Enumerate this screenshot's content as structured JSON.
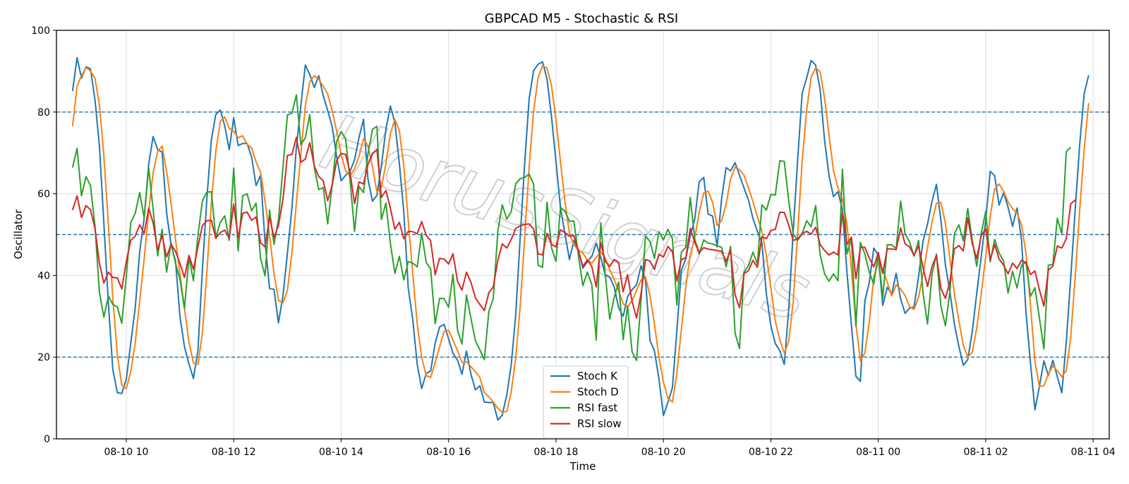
{
  "chart_data": {
    "type": "line",
    "title": "GBPCAD M5 - Stochastic & RSI",
    "xlabel": "Time",
    "ylabel": "Oscillator",
    "ylim": [
      0,
      100
    ],
    "xlim": [
      "08-10 08:42",
      "08-11 04:18"
    ],
    "yticks": [
      0,
      20,
      40,
      60,
      80,
      100
    ],
    "xticks": [
      "08-10 10",
      "08-10 12",
      "08-10 14",
      "08-10 16",
      "08-10 18",
      "08-10 20",
      "08-10 22",
      "08-11 00",
      "08-11 02",
      "08-11 04"
    ],
    "grid": true,
    "legend_position": "bottom-center",
    "watermark": "HorusSignals",
    "reference_lines": [
      {
        "y": 80,
        "color": "#1f77b4",
        "style": "dashed"
      },
      {
        "y": 50,
        "color": "#1f77b4",
        "style": "dashed"
      },
      {
        "y": 20,
        "color": "#1f77b4",
        "style": "dashed"
      }
    ],
    "x_start": "08-10 09:00",
    "x_step_minutes": 5,
    "series": [
      {
        "name": "Stoch K",
        "color": "#1f77b4",
        "values": [
          85.1,
          93.3,
          88.3,
          91.1,
          90.6,
          83,
          71.7,
          52.8,
          33.2,
          16.9,
          11.3,
          11.1,
          14.6,
          23.5,
          32,
          45.9,
          54,
          67.2,
          74,
          70.8,
          70.2,
          55.4,
          47.5,
          43.6,
          29.8,
          22.6,
          18.3,
          14.8,
          21.6,
          41.3,
          58.6,
          73.2,
          79.4,
          80.5,
          76.6,
          70.8,
          78.6,
          71.8,
          72.3,
          72.3,
          69,
          62,
          64.5,
          48.2,
          36.8,
          36.6,
          28.4,
          35,
          45.4,
          56.5,
          71.3,
          81.6,
          91.5,
          89.2,
          86,
          88.9,
          84,
          80.4,
          76.4,
          69.1,
          63.2,
          64.5,
          65.5,
          68.3,
          73.8,
          78.2,
          63.5,
          58.2,
          59.6,
          66.8,
          75.8,
          81.5,
          77.4,
          67.5,
          55.5,
          36.8,
          29.3,
          18.2,
          12.3,
          16,
          16.6,
          23.4,
          27.4,
          28,
          24.5,
          20.9,
          19.3,
          15.8,
          21.5,
          15.8,
          12,
          13,
          9,
          8.9,
          8.9,
          4.6,
          5.8,
          10.8,
          18.1,
          30.2,
          49.3,
          67.3,
          83.3,
          90.1,
          91.7,
          92.3,
          88,
          78.8,
          67.9,
          56.6,
          50.2,
          43.9,
          48.5,
          46.2,
          41.8,
          43.3,
          44.7,
          47.9,
          44.4,
          40.2,
          39.6,
          37.2,
          32.1,
          30,
          34.8,
          36.5,
          37.7,
          42.4,
          38.8,
          24.1,
          21.5,
          14.7,
          5.7,
          8.9,
          12.5,
          26.4,
          41.2,
          44.1,
          49.7,
          53.8,
          62.9,
          64,
          55,
          54.5,
          47,
          58.7,
          66.4,
          65.6,
          67.6,
          64.5,
          61.4,
          58.5,
          53.9,
          50.8,
          48,
          35.5,
          27.7,
          23.3,
          21.6,
          18.2,
          31.8,
          50.8,
          68.5,
          84.6,
          88.3,
          92.6,
          91.5,
          85.6,
          73,
          64.4,
          59.3,
          60.5,
          56.1,
          40.8,
          27.9,
          15.3,
          14.1,
          33.7,
          38.3,
          46.7,
          45,
          32.7,
          37.1,
          35.4,
          40.5,
          34.2,
          30.7,
          32,
          32.3,
          39.8,
          48.4,
          52.6,
          58.1,
          62.3,
          53.4,
          42.6,
          36,
          28.1,
          22.6,
          18,
          19.4,
          26.3,
          35.6,
          44.7,
          53.4,
          65.5,
          64.4,
          57.2,
          60.3,
          56.7,
          52,
          56.5,
          48.7,
          31,
          18.5,
          7.1,
          12.8,
          19.1,
          15.5,
          19.2,
          15.2,
          11.3,
          23.7,
          39.4,
          56.3,
          72,
          84.5,
          89
        ]
      },
      {
        "name": "Stoch D",
        "color": "#ff7f0e",
        "values": [
          76.5,
          86.3,
          88.9,
          90.9,
          90,
          88.3,
          81.7,
          69.2,
          52.6,
          34.3,
          20.5,
          13.1,
          12.3,
          16.4,
          23.4,
          33.8,
          44,
          55.7,
          65.1,
          70.4,
          71.7,
          65.5,
          57.7,
          48.8,
          40.3,
          32,
          23.6,
          18.6,
          18.2,
          25.9,
          40.5,
          57.7,
          70.4,
          77.7,
          78.8,
          76,
          75.3,
          73.7,
          74.2,
          72.1,
          71.2,
          67.8,
          65.2,
          58.2,
          49.8,
          40.5,
          33.9,
          33.3,
          36.3,
          45.6,
          57.7,
          69.8,
          81.5,
          87.4,
          88.9,
          88,
          86.3,
          84.4,
          80.3,
          75.3,
          69.6,
          65.6,
          64.4,
          66.1,
          69.2,
          73.4,
          71.8,
          66.6,
          60.4,
          61.5,
          67.4,
          74.7,
          78.2,
          75.5,
          66.8,
          53.3,
          40.5,
          28.1,
          19.9,
          15.5,
          15,
          18.7,
          22.5,
          26.3,
          26.6,
          24.1,
          21.6,
          18.7,
          18.9,
          17.7,
          16.4,
          15,
          11.3,
          10.3,
          9,
          7.5,
          6.5,
          6.7,
          11.5,
          19.7,
          32.5,
          49,
          66.6,
          80.2,
          88.4,
          91.4,
          90.7,
          86.4,
          78.2,
          67.8,
          58.2,
          50.2,
          47.5,
          46.2,
          45.5,
          43.8,
          43,
          44.4,
          45.7,
          44.2,
          41.4,
          39,
          36.3,
          33.1,
          32.3,
          33.8,
          36.3,
          38.9,
          39.6,
          35.1,
          28.1,
          20.1,
          13.9,
          10,
          9,
          15.9,
          26.7,
          37.2,
          45,
          49.2,
          55.5,
          60.2,
          60.6,
          57.8,
          52.2,
          53.4,
          57.4,
          63.6,
          66.5,
          65.9,
          64.5,
          61.5,
          58,
          54.4,
          50.9,
          44.8,
          37.1,
          28.8,
          24.2,
          21,
          23.9,
          33.6,
          50.4,
          68,
          80.5,
          88.5,
          90.8,
          89.9,
          83.4,
          74.3,
          65.6,
          61.4,
          58.6,
          52.5,
          41.6,
          28,
          19.1,
          21,
          28.7,
          39.6,
          43.3,
          41.5,
          38.3,
          35,
          37.7,
          36.7,
          35.1,
          32.3,
          31.7,
          34.7,
          40.2,
          46.9,
          53,
          57.7,
          57.9,
          52.8,
          44,
          35.6,
          28.9,
          22.9,
          20,
          21.2,
          27.1,
          35.5,
          44.6,
          54.5,
          61.1,
          62.4,
          60.6,
          58,
          56.3,
          55.3,
          52.4,
          45.4,
          32.7,
          18.9,
          12.8,
          13,
          15.8,
          17.9,
          16.6,
          15.2,
          16.7,
          24.8,
          39.8,
          55.9,
          70.9,
          82.2
        ]
      },
      {
        "name": "RSI fast",
        "color": "#2ca02c",
        "values": [
          66.4,
          71.1,
          59.5,
          64.2,
          62,
          52.1,
          35.8,
          29.8,
          35,
          32.9,
          32.3,
          28.3,
          39.7,
          52.9,
          55.2,
          60.3,
          54.1,
          66.3,
          56.2,
          44.8,
          51.3,
          40.8,
          48,
          43,
          39,
          31.9,
          44.5,
          38.7,
          49.8,
          58.2,
          60.4,
          60.5,
          49.3,
          53,
          54.6,
          48.6,
          66.3,
          46,
          59.5,
          60,
          55.8,
          57.7,
          44.1,
          39.9,
          56,
          47.6,
          53.6,
          66.4,
          79.3,
          79.7,
          84.2,
          72,
          73.7,
          79.4,
          66.5,
          61,
          61.5,
          52.6,
          62.2,
          72.8,
          75.2,
          73.5,
          63.3,
          50.8,
          61.8,
          60.3,
          69.8,
          75.8,
          76.5,
          53.7,
          57.7,
          47.9,
          40.5,
          44.7,
          38.9,
          43.4,
          43,
          42.1,
          50.4,
          43.2,
          41.6,
          28.2,
          34.4,
          34.3,
          32.2,
          40.3,
          26.6,
          23.2,
          35.2,
          29.5,
          24,
          21.8,
          19.4,
          31.2,
          34.4,
          50.8,
          57.3,
          53.8,
          55.6,
          62.4,
          63.7,
          64,
          64.8,
          62.3,
          42.5,
          42,
          57.9,
          46.8,
          43.4,
          56.6,
          55.7,
          53.3,
          53.3,
          44.9,
          37.5,
          40.8,
          37.8,
          24.2,
          52.9,
          40.3,
          29.3,
          34.6,
          38.4,
          24.3,
          32.5,
          21.3,
          19.2,
          34.2,
          49.6,
          48.3,
          44.2,
          50.7,
          48.7,
          51.3,
          49,
          32.8,
          45.7,
          46.9,
          59.1,
          48.9,
          45.2,
          48.7,
          47.9,
          47.7,
          47.2,
          46.9,
          42.1,
          47.1,
          25.9,
          22.1,
          40.8,
          42.4,
          45.7,
          42.8,
          57.3,
          56,
          59.8,
          59.7,
          68.1,
          67.9,
          58.2,
          50.2,
          48.6,
          50.2,
          53.4,
          51.9,
          57.1,
          45.1,
          40.4,
          38.6,
          40.4,
          38.7,
          66,
          45.3,
          48.9,
          27.5,
          48.1,
          45.3,
          40.7,
          37.9,
          45.5,
          34.4,
          47.5,
          47.5,
          46.6,
          58.2,
          50.2,
          48.2,
          44.7,
          48.6,
          35.6,
          28.1,
          40.2,
          45.2,
          32.4,
          27.7,
          36.1,
          50.2,
          52.4,
          48.5,
          56.4,
          48.6,
          42.2,
          50.3,
          55.7,
          43.3,
          48.8,
          45.5,
          43.5,
          35.7,
          41,
          36.9,
          42.5,
          43.2,
          34.9,
          37,
          29.6,
          22,
          42.5,
          42.7,
          54,
          50.2,
          70.3,
          71.4
        ]
      },
      {
        "name": "RSI slow",
        "color": "#d62728",
        "values": [
          56,
          59.5,
          54.2,
          57.1,
          56.1,
          51.6,
          43,
          38.1,
          40.8,
          39.5,
          39.4,
          36.7,
          43.4,
          48.6,
          49.6,
          52.4,
          50.3,
          56.5,
          52.9,
          46.3,
          49.8,
          44.5,
          47.6,
          45.9,
          42.9,
          39.5,
          44.9,
          41.5,
          47,
          52.2,
          53.4,
          53.5,
          49.1,
          50.5,
          51.1,
          49.1,
          57.5,
          49.2,
          55.2,
          55.5,
          53.5,
          54.3,
          48,
          47,
          54.3,
          49.3,
          52.2,
          58.6,
          69.4,
          69.6,
          73.8,
          67.7,
          68.5,
          72.5,
          66.8,
          64.2,
          63.2,
          58.3,
          62.1,
          68.1,
          69.9,
          69.6,
          65.2,
          57.6,
          62.9,
          62.4,
          67.2,
          69.9,
          70.8,
          59.1,
          60.8,
          56.5,
          51.3,
          53,
          49,
          50.8,
          50.7,
          50.2,
          53.2,
          49.8,
          48.5,
          40.2,
          44.2,
          44,
          42.8,
          45.3,
          38.6,
          36.4,
          40.8,
          38.3,
          34.5,
          32.9,
          31.4,
          35.8,
          37.2,
          43.7,
          47.7,
          46.7,
          48.8,
          51.5,
          52.1,
          52.5,
          52.6,
          51.4,
          45.3,
          45,
          50.3,
          47.6,
          47,
          51.2,
          50.5,
          49.6,
          49.7,
          46.1,
          42.2,
          43.8,
          42.2,
          37.2,
          48,
          43.5,
          42.2,
          43.9,
          43.2,
          36,
          40.2,
          33.6,
          29.6,
          35.6,
          43.9,
          43.5,
          41.5,
          45.2,
          44.5,
          47.1,
          45.8,
          38.7,
          43.9,
          44.3,
          51.5,
          48.1,
          45.6,
          46.8,
          46.4,
          46.3,
          46.1,
          45.9,
          43.4,
          46.1,
          35.3,
          32.1,
          40.4,
          41.2,
          43.7,
          42,
          49.5,
          49,
          51,
          51.3,
          55.5,
          55.4,
          52.3,
          48.6,
          48.9,
          50.3,
          50.8,
          50.1,
          51.8,
          47.6,
          46.1,
          45,
          45.7,
          45,
          55.6,
          47.6,
          49.4,
          39.2,
          46.8,
          46.9,
          44.2,
          42.1,
          45.6,
          40.5,
          46.5,
          46.5,
          46.3,
          51.6,
          47.7,
          47,
          44.9,
          47.2,
          41.9,
          37.3,
          42.2,
          44.9,
          36.8,
          34.4,
          38.4,
          46.5,
          47.3,
          46,
          54.1,
          47.8,
          44.1,
          49.8,
          51.4,
          43.8,
          47.6,
          44,
          42.5,
          40.4,
          43,
          41.7,
          43.7,
          43.2,
          40.2,
          41.1,
          36.5,
          32.5,
          41.3,
          42.3,
          47.2,
          46.7,
          49,
          57.5,
          58.5
        ]
      }
    ]
  }
}
